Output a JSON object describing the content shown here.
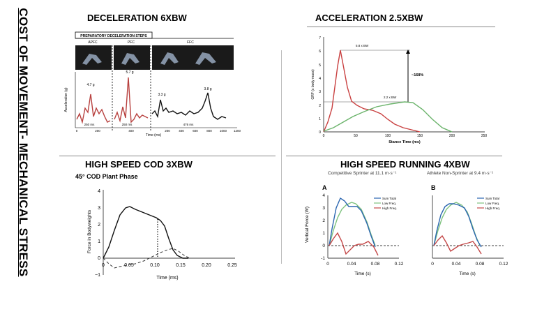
{
  "slide_title": "COST OF MOVEMENT- MECHANICAL STRESS",
  "panels": {
    "decel": {
      "title": "DECELERATION 6XBW",
      "header": "PREPARATORY DECELERATION STEPS",
      "steps": [
        "APFC",
        "PFC",
        "FFC"
      ],
      "ylabel": "Acceleration (g)",
      "xlabel": "Time (ms)",
      "peaks": [
        "4.7 g",
        "5.7 g",
        "3.3 g",
        "3.8 g"
      ],
      "durations": [
        "250 ms",
        "250 ms",
        "476 ms"
      ],
      "xticks": [
        "0",
        "200",
        "400",
        "200",
        "400",
        "600",
        "800",
        "1000",
        "1200"
      ]
    },
    "accel": {
      "title": "ACCELERATION  2.5XBW",
      "ylabel": "GRF (x body mass)",
      "xlabel": "Stance Time (ms)",
      "yticks": [
        "0",
        "1",
        "2",
        "3",
        "4",
        "5",
        "6",
        "7"
      ],
      "xticks": [
        "0",
        "50",
        "100",
        "150",
        "200",
        "250"
      ],
      "annot_peak": "5.8 x BW",
      "annot_low": "2.2 x BW",
      "annot_pct": "~168%",
      "colors": {
        "impact": "#c94040",
        "propulsive": "#6ab36a"
      }
    },
    "cod": {
      "title": "HIGH SPEED COD   3XBW",
      "subtitle": "45° COD Plant Phase",
      "ylabel": "Force in Bodyweights",
      "xlabel": "Time (ms)",
      "yticks": [
        "−1",
        "0",
        "1",
        "2",
        "3",
        "4"
      ],
      "xticks": [
        "0",
        "0.05",
        "0.10",
        "0.15",
        "0.20",
        "0.25"
      ]
    },
    "run": {
      "title": "HIGH SPEED RUNNING  4XBW",
      "left": {
        "label": "A",
        "subtitle": "Competitive Sprinter at 11.1 m·s⁻¹"
      },
      "right": {
        "label": "B",
        "subtitle": "Athlete Non-Sprinter at 9.4 m·s⁻¹"
      },
      "legend": [
        "Sum Total",
        "Low Freq.",
        "High Freq."
      ],
      "colors": {
        "sum": "#2b66b0",
        "low": "#7ec27e",
        "high": "#c44848"
      },
      "ylabel": "Vertical Force (W)",
      "xlabel": "Time (s)",
      "yticks": [
        "-1",
        "0",
        "1",
        "2",
        "3",
        "4"
      ],
      "xticks": [
        "0",
        "0.04",
        "0.08",
        "0.12"
      ]
    }
  }
}
